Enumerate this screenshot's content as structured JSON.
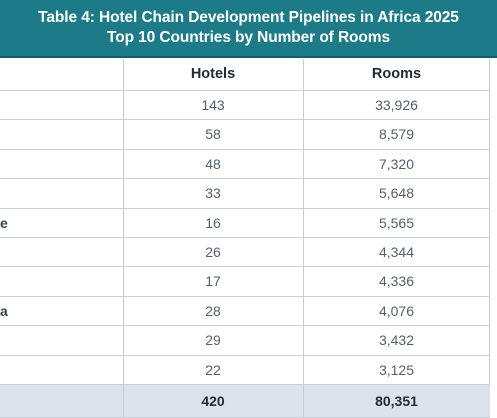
{
  "title": {
    "line1": "Table 4: Hotel Chain Development Pipelines in Africa 2025",
    "line2": "Top 10 Countries by Number of Rooms"
  },
  "table": {
    "columns": [
      "",
      "Hotels",
      "Rooms"
    ],
    "rows": [
      {
        "label": "",
        "hotels": "143",
        "rooms": "33,926"
      },
      {
        "label": "",
        "hotels": "58",
        "rooms": "8,579"
      },
      {
        "label": "",
        "hotels": "48",
        "rooms": "7,320"
      },
      {
        "label": "",
        "hotels": "33",
        "rooms": "5,648"
      },
      {
        "label": "e",
        "hotels": "16",
        "rooms": "5,565"
      },
      {
        "label": "",
        "hotels": "26",
        "rooms": "4,344"
      },
      {
        "label": "",
        "hotels": "17",
        "rooms": "4,336"
      },
      {
        "label": "a",
        "hotels": "28",
        "rooms": "4,076"
      },
      {
        "label": "",
        "hotels": "29",
        "rooms": "3,432"
      },
      {
        "label": "",
        "hotels": "22",
        "rooms": "3,125"
      }
    ],
    "total": {
      "label": "",
      "hotels": "420",
      "rooms": "80,351"
    }
  }
}
